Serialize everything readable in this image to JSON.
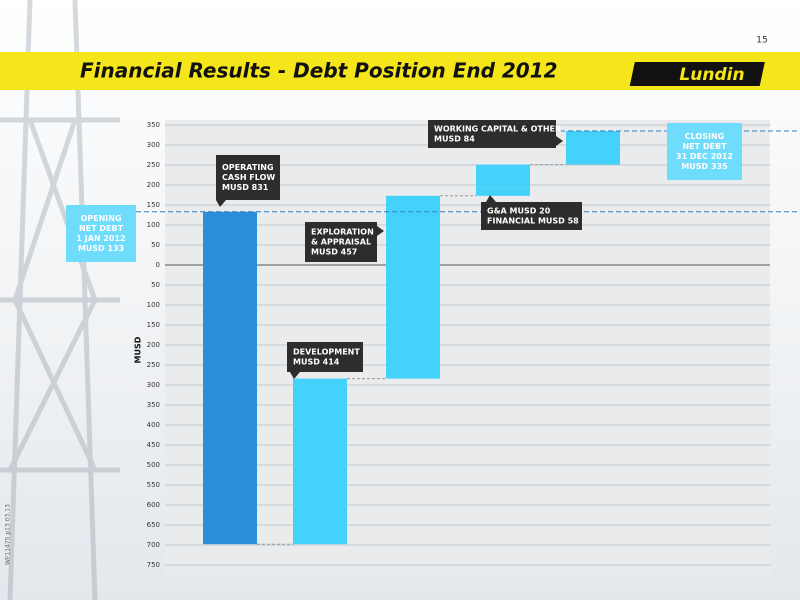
{
  "page_number": "15",
  "logo": "Lundin",
  "side_code": "WF11475 p13 03.13",
  "chart_data": {
    "type": "waterfall",
    "title": "Financial Results - Debt Position End 2012",
    "ylabel": "MUSD",
    "ylim": [
      -750,
      350
    ],
    "yticks": [
      350,
      300,
      250,
      200,
      150,
      100,
      50,
      0,
      {
        "value": -50,
        "label": "50"
      },
      {
        "value": -100,
        "label": "100"
      },
      {
        "value": -150,
        "label": "150"
      },
      {
        "value": -200,
        "label": "200"
      },
      {
        "value": -250,
        "label": "250"
      },
      {
        "value": -300,
        "label": "300"
      },
      {
        "value": -350,
        "label": "350"
      },
      {
        "value": -400,
        "label": "400"
      },
      {
        "value": -450,
        "label": "450"
      },
      {
        "value": -500,
        "label": "500"
      },
      {
        "value": -550,
        "label": "550"
      },
      {
        "value": -600,
        "label": "600"
      },
      {
        "value": -650,
        "label": "650"
      },
      {
        "value": -700,
        "label": "700"
      },
      {
        "value": -750,
        "label": "750"
      }
    ],
    "grid": true,
    "start": {
      "value": 133,
      "label_lines": [
        "OPENING",
        "NET DEBT",
        "1 JAN 2012",
        "MUSD 133"
      ],
      "color": "#2e7fc4"
    },
    "steps": [
      {
        "label_lines": [
          "OPERATING",
          "CASH FLOW",
          "MUSD 831"
        ],
        "values": [
          -831
        ],
        "color": "#2a8fd6"
      },
      {
        "label_lines": [
          "DEVELOPMENT",
          "MUSD 414"
        ],
        "values": [
          414
        ],
        "color": "#44d2fb"
      },
      {
        "label_lines": [
          "EXPLORATION",
          "& APPRAISAL",
          "MUSD 457"
        ],
        "values": [
          457
        ],
        "color": "#44d2fb"
      },
      {
        "label_lines": [
          "G&A MUSD 20",
          "FINANCIAL MUSD 58"
        ],
        "values": [
          20,
          58
        ],
        "color": "#44d2fb"
      },
      {
        "label_lines": [
          "WORKING CAPITAL & OTHER",
          "MUSD 84"
        ],
        "values": [
          84
        ],
        "color": "#44d2fb"
      }
    ],
    "end": {
      "value": 335,
      "label_lines": [
        "CLOSING",
        "NET DEBT",
        "31 DEC 2012",
        "MUSD 335"
      ],
      "color": "#2e7fc4"
    }
  }
}
